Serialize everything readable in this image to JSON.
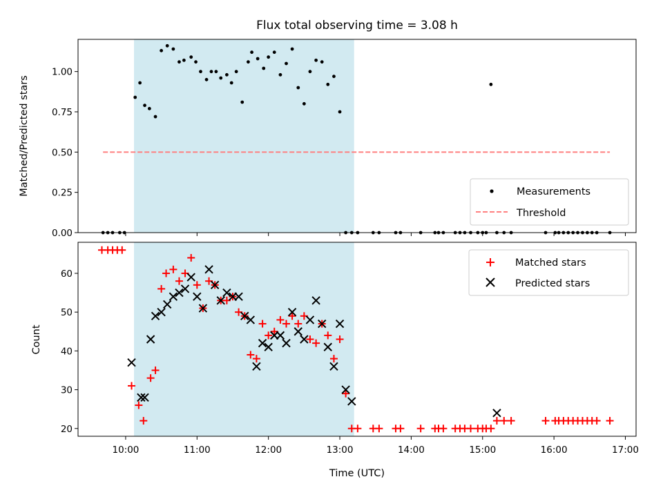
{
  "chart_data": [
    {
      "type": "scatter",
      "panel": "top",
      "title": "Flux total observing time = 3.08 h",
      "xlabel": "",
      "ylabel": "Matched/Predicted stars",
      "xlim": [
        9.333,
        17.15
      ],
      "ylim": [
        0.0,
        1.2
      ],
      "yticks": [
        0.0,
        0.25,
        0.5,
        0.75,
        1.0
      ],
      "ytick_labels": [
        "0.00",
        "0.25",
        "0.50",
        "0.75",
        "1.00"
      ],
      "observing_span": [
        10.117,
        13.2
      ],
      "span_color": "#add8e6",
      "legend": {
        "position": "bottom-right",
        "entries": [
          "Measurements",
          "Threshold"
        ]
      },
      "series": [
        {
          "name": "Measurements",
          "color": "#000000",
          "marker": "dot",
          "x": [
            9.683,
            9.75,
            9.817,
            9.917,
            9.983,
            10.133,
            10.2,
            10.267,
            10.333,
            10.417,
            10.5,
            10.583,
            10.667,
            10.75,
            10.817,
            10.917,
            10.983,
            11.05,
            11.133,
            11.2,
            11.267,
            11.333,
            11.417,
            11.483,
            11.55,
            11.633,
            11.717,
            11.767,
            11.85,
            11.933,
            12.0,
            12.083,
            12.167,
            12.25,
            12.333,
            12.417,
            12.5,
            12.583,
            12.667,
            12.75,
            12.833,
            12.917,
            13.0,
            13.083,
            13.167,
            13.25,
            13.467,
            13.55,
            13.783,
            13.85,
            14.133,
            14.333,
            14.383,
            14.45,
            14.617,
            14.683,
            14.75,
            14.833,
            14.933,
            15.0,
            15.05,
            15.117,
            15.2,
            15.3,
            15.4,
            15.883,
            16.017,
            16.067,
            16.133,
            16.2,
            16.267,
            16.333,
            16.4,
            16.467,
            16.533,
            16.6,
            16.783
          ],
          "y": [
            0,
            0,
            0,
            0,
            0,
            0.84,
            0.93,
            0.79,
            0.77,
            0.72,
            1.13,
            1.16,
            1.14,
            1.06,
            1.07,
            1.09,
            1.06,
            1.0,
            0.95,
            1.0,
            1.0,
            0.96,
            0.98,
            0.93,
            1.0,
            0.81,
            1.06,
            1.12,
            1.08,
            1.02,
            1.09,
            1.12,
            0.98,
            1.05,
            1.14,
            0.9,
            0.8,
            1.0,
            1.07,
            1.06,
            0.92,
            0.97,
            0.75,
            0,
            0,
            0,
            0,
            0,
            0,
            0,
            0,
            0,
            0,
            0,
            0,
            0,
            0,
            0,
            0,
            0,
            0,
            0.92,
            0,
            0,
            0,
            0,
            0,
            0,
            0,
            0,
            0,
            0,
            0,
            0,
            0,
            0,
            0
          ]
        },
        {
          "name": "Threshold",
          "color": "#ff7f7f",
          "style": "dashed",
          "x": [
            9.683,
            16.783
          ],
          "y": [
            0.5,
            0.5
          ]
        }
      ]
    },
    {
      "type": "scatter",
      "panel": "bottom",
      "title": "",
      "xlabel": "Time (UTC)",
      "ylabel": "Count",
      "xlim": [
        9.333,
        17.15
      ],
      "ylim": [
        18,
        68
      ],
      "yticks": [
        20,
        30,
        40,
        50,
        60
      ],
      "ytick_labels": [
        "20",
        "30",
        "40",
        "50",
        "60"
      ],
      "xticks": [
        10,
        11,
        12,
        13,
        14,
        15,
        16,
        17
      ],
      "xtick_labels": [
        "10:00",
        "11:00",
        "12:00",
        "13:00",
        "14:00",
        "15:00",
        "16:00",
        "17:00"
      ],
      "observing_span": [
        10.117,
        13.2
      ],
      "span_color": "#add8e6",
      "legend": {
        "position": "top-right",
        "entries": [
          "Matched stars",
          "Predicted stars"
        ]
      },
      "series": [
        {
          "name": "Matched stars",
          "color": "#ff0000",
          "marker": "plus",
          "x": [
            9.667,
            9.75,
            9.817,
            9.883,
            9.95,
            10.083,
            10.183,
            10.25,
            10.35,
            10.417,
            10.5,
            10.567,
            10.667,
            10.75,
            10.833,
            10.917,
            11.0,
            11.083,
            11.167,
            11.25,
            11.333,
            11.417,
            11.5,
            11.583,
            11.667,
            11.75,
            11.833,
            11.917,
            12.0,
            12.083,
            12.167,
            12.25,
            12.333,
            12.417,
            12.5,
            12.583,
            12.667,
            12.75,
            12.833,
            12.917,
            13.0,
            13.083,
            13.167,
            13.25,
            13.467,
            13.55,
            13.783,
            13.85,
            14.133,
            14.333,
            14.383,
            14.45,
            14.617,
            14.683,
            14.75,
            14.833,
            14.933,
            15.0,
            15.05,
            15.117,
            15.2,
            15.3,
            15.4,
            15.883,
            16.017,
            16.067,
            16.133,
            16.2,
            16.267,
            16.333,
            16.4,
            16.467,
            16.533,
            16.6,
            16.783
          ],
          "y": [
            66,
            66,
            66,
            66,
            66,
            31,
            26,
            22,
            33,
            35,
            56,
            60,
            61,
            58,
            60,
            64,
            57,
            51,
            58,
            57,
            53,
            53,
            54,
            50,
            49,
            39,
            38,
            47,
            44,
            45,
            48,
            47,
            49,
            47,
            49,
            43,
            42,
            47,
            44,
            38,
            43,
            29,
            20,
            20,
            20,
            20,
            20,
            20,
            20,
            20,
            20,
            20,
            20,
            20,
            20,
            20,
            20,
            20,
            20,
            20,
            22,
            22,
            22,
            22,
            22,
            22,
            22,
            22,
            22,
            22,
            22,
            22,
            22,
            22,
            22
          ]
        },
        {
          "name": "Predicted stars",
          "color": "#000000",
          "marker": "x",
          "x": [
            10.083,
            10.217,
            10.267,
            10.35,
            10.417,
            10.5,
            10.583,
            10.667,
            10.75,
            10.833,
            10.917,
            11.0,
            11.083,
            11.167,
            11.25,
            11.333,
            11.417,
            11.5,
            11.583,
            11.667,
            11.75,
            11.833,
            11.917,
            12.0,
            12.083,
            12.167,
            12.25,
            12.333,
            12.417,
            12.5,
            12.583,
            12.667,
            12.75,
            12.833,
            12.917,
            13.0,
            13.083,
            13.167,
            15.2
          ],
          "y": [
            37,
            28,
            28,
            43,
            49,
            50,
            52,
            54,
            55,
            56,
            59,
            54,
            51,
            61,
            57,
            53,
            55,
            54,
            54,
            49,
            48,
            36,
            42,
            41,
            44,
            44,
            42,
            50,
            45,
            43,
            48,
            53,
            47,
            41,
            36,
            47,
            30,
            27,
            24
          ]
        }
      ]
    }
  ]
}
